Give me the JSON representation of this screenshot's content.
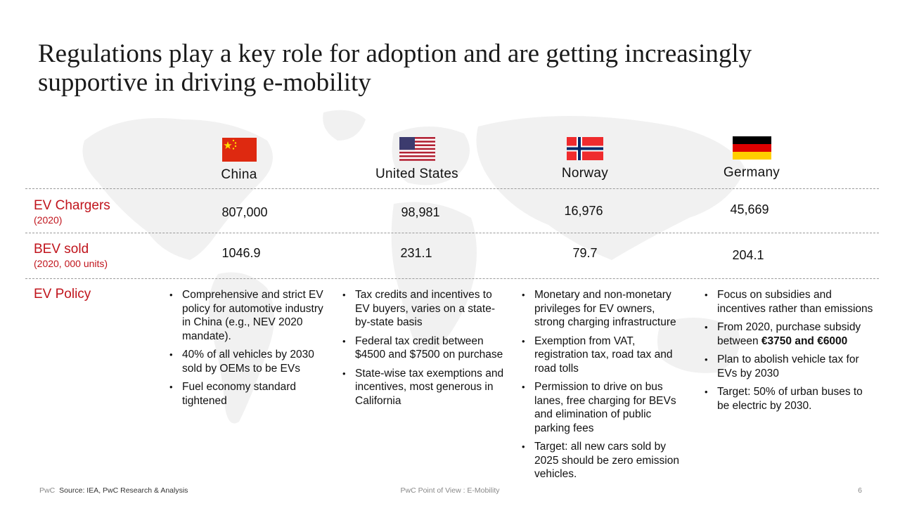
{
  "title": "Regulations play a key role for adoption and are getting increasingly supportive in driving e-mobility",
  "countries": [
    {
      "name": "China",
      "flag_icon": "china-flag-icon",
      "ev_chargers": "807,000",
      "bev_sold": "1046.9",
      "policy": [
        "Comprehensive and strict EV policy for automotive industry in China (e.g., NEV 2020 mandate).",
        "40% of all vehicles by 2030 sold by OEMs to be EVs",
        "Fuel economy standard tightened"
      ]
    },
    {
      "name": "United States",
      "flag_icon": "us-flag-icon",
      "ev_chargers": "98,981",
      "bev_sold": "231.1",
      "policy": [
        "Tax credits and incentives to EV buyers, varies on a state-by-state basis",
        "Federal tax credit between $4500 and $7500 on purchase",
        "State-wise tax exemptions and incentives, most generous in California"
      ]
    },
    {
      "name": "Norway",
      "flag_icon": "norway-flag-icon",
      "ev_chargers": "16,976",
      "bev_sold": "79.7",
      "policy": [
        "Monetary and non-monetary privileges for EV owners, strong charging infrastructure",
        "Exemption from VAT, registration tax, road tax and road tolls",
        "Permission to drive on bus lanes, free charging for BEVs and elimination of public parking fees",
        "Target: all new cars sold by 2025 should be zero emission vehicles."
      ]
    },
    {
      "name": "Germany",
      "flag_icon": "germany-flag-icon",
      "ev_chargers": "45,669",
      "bev_sold": "204.1",
      "policy": [
        "Focus on subsidies and incentives rather than emissions",
        "From 2020, purchase subsidy between",
        "Plan to abolish vehicle tax for EVs by 2030",
        "Target: 50% of urban buses to be electric by 2030."
      ],
      "subsidy_amount": "€3750 and €6000"
    }
  ],
  "rows": {
    "ev_chargers": {
      "label": "EV Chargers",
      "sub": "(2020)"
    },
    "bev_sold": {
      "label": "BEV sold",
      "sub": "(2020, 000 units)"
    },
    "ev_policy": {
      "label": "EV Policy"
    }
  },
  "footer": {
    "brand": "PwC",
    "source": "Source: IEA, PwC Research & Analysis",
    "center": "PwC Point of View : E-Mobility",
    "page": "6"
  },
  "colors": {
    "accent": "#c0141c",
    "map": "#f2f2f2"
  }
}
